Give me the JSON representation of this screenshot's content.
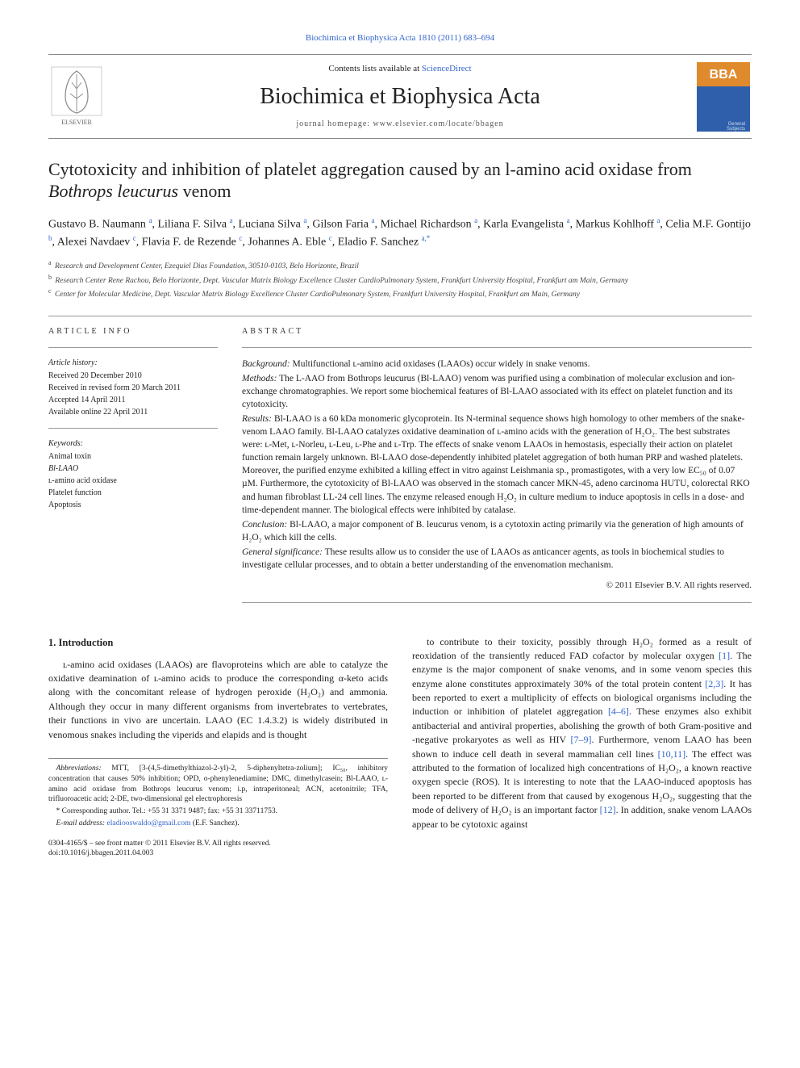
{
  "top_link": "Biochimica et Biophysica Acta 1810 (2011) 683–694",
  "header": {
    "contents_pre": "Contents lists available at ",
    "contents_link": "ScienceDirect",
    "journal": "Biochimica et Biophysica Acta",
    "homepage": "journal homepage: www.elsevier.com/locate/bbagen"
  },
  "title_part1": "Cytotoxicity and inhibition of platelet aggregation caused by an l-amino acid oxidase from ",
  "title_italic": "Bothrops leucurus",
  "title_part2": " venom",
  "authors_html": "Gustavo B. Naumann <sup>a</sup>, Liliana F. Silva <sup>a</sup>, Luciana Silva <sup>a</sup>, Gilson Faria <sup>a</sup>, Michael Richardson <sup>a</sup>, Karla Evangelista <sup>a</sup>, Markus Kohlhoff <sup>a</sup>, Celia M.F. Gontijo <sup>b</sup>, Alexei Navdaev <sup>c</sup>, Flavia F. de Rezende <sup>c</sup>, Johannes A. Eble <sup>c</sup>, Eladio F. Sanchez <sup>a,*</sup>",
  "affiliations": {
    "a": "Research and Development Center, Ezequiel Dias Foundation, 30510-0103, Belo Horizonte, Brazil",
    "b": "Research Center Rene Rachou, Belo Horizonte, Dept. Vascular Matrix Biology Excellence Cluster CardioPulmonary System, Frankfurt University Hospital, Frankfurt am Main, Germany",
    "c": "Center for Molecular Medicine, Dept. Vascular Matrix Biology Excellence Cluster CardioPulmonary System, Frankfurt University Hospital, Frankfurt am Main, Germany"
  },
  "article_info": {
    "heading": "ARTICLE INFO",
    "history_label": "Article history:",
    "received": "Received 20 December 2010",
    "revised": "Received in revised form 20 March 2011",
    "accepted": "Accepted 14 April 2011",
    "online": "Available online 22 April 2011",
    "keywords_label": "Keywords:",
    "keywords": [
      "Animal toxin",
      "Bl-LAAO",
      "ʟ-amino acid oxidase",
      "Platelet function",
      "Apoptosis"
    ]
  },
  "abstract": {
    "heading": "ABSTRACT",
    "background_label": "Background:",
    "background": " Multifunctional ʟ-amino acid oxidases (LAAOs) occur widely in snake venoms.",
    "methods_label": "Methods:",
    "methods": " The L-AAO from Bothrops leucurus (Bl-LAAO) venom was purified using a combination of molecular exclusion and ion-exchange chromatographies. We report some biochemical features of Bl-LAAO associated with its effect on platelet function and its cytotoxicity.",
    "results_label": "Results:",
    "results": " Bl-LAAO is a 60 kDa monomeric glycoprotein. Its N-terminal sequence shows high homology to other members of the snake-venom LAAO family. Bl-LAAO catalyzes oxidative deamination of ʟ-amino acids with the generation of H₂O₂. The best substrates were: ʟ-Met, ʟ-Norleu, ʟ-Leu, ʟ-Phe and ʟ-Trp. The effects of snake venom LAAOs in hemostasis, especially their action on platelet function remain largely unknown. Bl-LAAO dose-dependently inhibited platelet aggregation of both human PRP and washed platelets. Moreover, the purified enzyme exhibited a killing effect in vitro against Leishmania sp., promastigotes, with a very low EC₅₀ of 0.07 µM. Furthermore, the cytotoxicity of Bl-LAAO was observed in the stomach cancer MKN-45, adeno carcinoma HUTU, colorectal RKO and human fibroblast LL-24 cell lines. The enzyme released enough H₂O₂ in culture medium to induce apoptosis in cells in a dose- and time-dependent manner. The biological effects were inhibited by catalase.",
    "conclusion_label": "Conclusion:",
    "conclusion": " Bl-LAAO, a major component of B. leucurus venom, is a cytotoxin acting primarily via the generation of high amounts of H₂O₂ which kill the cells.",
    "significance_label": "General significance:",
    "significance": " These results allow us to consider the use of LAAOs as anticancer agents, as tools in biochemical studies to investigate cellular processes, and to obtain a better understanding of the envenomation mechanism.",
    "copyright": "© 2011 Elsevier B.V. All rights reserved."
  },
  "body": {
    "section_heading": "1. Introduction",
    "col1": "ʟ-amino acid oxidases (LAAOs) are flavoproteins which are able to catalyze the oxidative deamination of ʟ-amino acids to produce the corresponding α-keto acids along with the concomitant release of hydrogen peroxide (H₂O₂) and ammonia. Although they occur in many different organisms from invertebrates to vertebrates, their functions in vivo are uncertain. LAAO (EC 1.4.3.2) is widely distributed in venomous snakes including the viperids and elapids and is thought",
    "col2_a": "to contribute to their toxicity, possibly through H₂O₂ formed as a result of reoxidation of the transiently reduced FAD cofactor by molecular oxygen ",
    "col2_ref1": "[1]",
    "col2_b": ". The enzyme is the major component of snake venoms, and in some venom species this enzyme alone constitutes approximately 30% of the total protein content ",
    "col2_ref2": "[2,3]",
    "col2_c": ". It has been reported to exert a multiplicity of effects on biological organisms including the induction or inhibition of platelet aggregation ",
    "col2_ref3": "[4–6]",
    "col2_d": ". These enzymes also exhibit antibacterial and antiviral properties, abolishing the growth of both Gram-positive and -negative prokaryotes as well as HIV ",
    "col2_ref4": "[7–9]",
    "col2_e": ". Furthermore, venom LAAO has been shown to induce cell death in several mammalian cell lines ",
    "col2_ref5": "[10,11]",
    "col2_f": ". The effect was attributed to the formation of localized high concentrations of H₂O₂, a known reactive oxygen specie (ROS). It is interesting to note that the LAAO-induced apoptosis has been reported to be different from that caused by exogenous H₂O₂, suggesting that the mode of delivery of H₂O₂ is an important factor ",
    "col2_ref6": "[12]",
    "col2_g": ". In addition, snake venom LAAOs appear to be cytotoxic against"
  },
  "footnotes": {
    "abbrev_label": "Abbreviations:",
    "abbrev": " MTT, [3-(4,5-dimethylthiazol-2-yl)-2, 5-diphenyltetra-zolium]; IC₅₀, inhibitory concentration that causes 50% inhibition; OPD, o-phenylenediamine; DMC, dimethylcasein; Bl-LAAO, ʟ-amino acid oxidase from Bothrops leucurus venom; i.p, intraperitoneal; ACN, acetonitrile; TFA, trifluoroacetic acid; 2-DE, two-dimensional gel electrophoresis",
    "corr_label": "* Corresponding author.",
    "corr_tel": " Tel.: +55 31 3371 9487; fax: +55 31 33711753.",
    "email_label": "E-mail address:",
    "email": " eladiooswaldo@gmail.com",
    "email_name": " (E.F. Sanchez)."
  },
  "footer": {
    "line1": "0304-4165/$ – see front matter © 2011 Elsevier B.V. All rights reserved.",
    "line2": "doi:10.1016/j.bbagen.2011.04.003"
  },
  "colors": {
    "link": "#3366cc",
    "text": "#222222",
    "muted": "#555555",
    "rule": "#999999",
    "bba_orange": "#e08a2e",
    "bba_blue": "#2f5faa"
  },
  "typography": {
    "body_font": "Times New Roman",
    "title_size_pt": 22,
    "journal_size_pt": 28,
    "body_size_pt": 12,
    "abstract_size_pt": 11.5,
    "info_size_pt": 10,
    "footnote_size_pt": 9.5
  }
}
